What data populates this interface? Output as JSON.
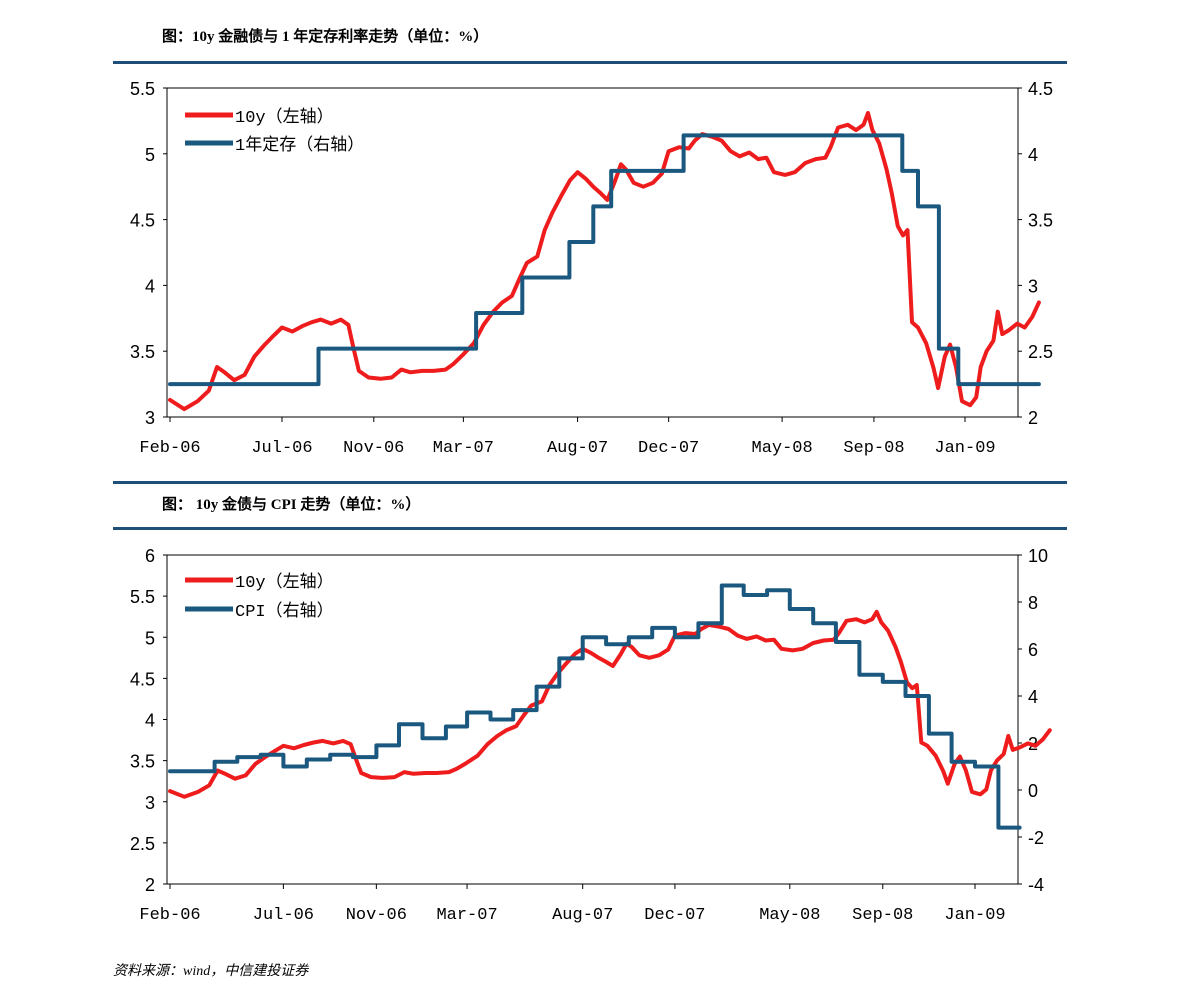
{
  "header": {
    "chart1_title": "图：10y 金融债与 1 年定存利率走势（单位：%）",
    "chart2_title": "图： 10y 金债与 CPI 走势（单位：%）"
  },
  "footer": {
    "source": "资料来源：wind，中信建投证券"
  },
  "chart_data": [
    {
      "type": "line",
      "title": "图：10y 金融债与 1 年定存利率走势（单位：%）",
      "x_ticks": [
        "Feb-06",
        "Jul-06",
        "Nov-06",
        "Mar-07",
        "Aug-07",
        "Dec-07",
        "May-08",
        "Sep-08",
        "Jan-09"
      ],
      "ylim_left": [
        3,
        5.5
      ],
      "yticks_left": [
        "3",
        "3.5",
        "4",
        "4.5",
        "5",
        "5.5"
      ],
      "ylim_right": [
        2,
        4.5
      ],
      "yticks_right": [
        "2",
        "2.5",
        "3",
        "3.5",
        "4",
        "4.5"
      ],
      "legend_position": "top-left",
      "series": [
        {
          "name": "10y（左轴）",
          "axis": "left",
          "color": "#ee1c1c",
          "style": "line",
          "points": [
            [
              "2006-02-01",
              3.13
            ],
            [
              "2006-02-20",
              3.06
            ],
            [
              "2006-03-10",
              3.12
            ],
            [
              "2006-03-25",
              3.2
            ],
            [
              "2006-04-05",
              3.38
            ],
            [
              "2006-04-15",
              3.34
            ],
            [
              "2006-04-28",
              3.28
            ],
            [
              "2006-05-12",
              3.32
            ],
            [
              "2006-05-25",
              3.46
            ],
            [
              "2006-06-08",
              3.55
            ],
            [
              "2006-06-20",
              3.62
            ],
            [
              "2006-07-01",
              3.68
            ],
            [
              "2006-07-15",
              3.65
            ],
            [
              "2006-07-28",
              3.69
            ],
            [
              "2006-08-10",
              3.72
            ],
            [
              "2006-08-22",
              3.74
            ],
            [
              "2006-09-05",
              3.71
            ],
            [
              "2006-09-18",
              3.74
            ],
            [
              "2006-09-28",
              3.7
            ],
            [
              "2006-10-05",
              3.52
            ],
            [
              "2006-10-12",
              3.35
            ],
            [
              "2006-10-25",
              3.3
            ],
            [
              "2006-11-10",
              3.29
            ],
            [
              "2006-11-25",
              3.3
            ],
            [
              "2006-12-08",
              3.36
            ],
            [
              "2006-12-20",
              3.34
            ],
            [
              "2007-01-05",
              3.35
            ],
            [
              "2007-01-20",
              3.35
            ],
            [
              "2007-02-05",
              3.36
            ],
            [
              "2007-02-15",
              3.4
            ],
            [
              "2007-02-28",
              3.47
            ],
            [
              "2007-03-15",
              3.56
            ],
            [
              "2007-03-28",
              3.7
            ],
            [
              "2007-04-10",
              3.8
            ],
            [
              "2007-04-22",
              3.87
            ],
            [
              "2007-05-05",
              3.92
            ],
            [
              "2007-05-15",
              4.05
            ],
            [
              "2007-05-25",
              4.17
            ],
            [
              "2007-06-08",
              4.22
            ],
            [
              "2007-06-18",
              4.42
            ],
            [
              "2007-06-28",
              4.55
            ],
            [
              "2007-07-10",
              4.68
            ],
            [
              "2007-07-22",
              4.8
            ],
            [
              "2007-08-01",
              4.86
            ],
            [
              "2007-08-12",
              4.81
            ],
            [
              "2007-08-22",
              4.75
            ],
            [
              "2007-09-01",
              4.7
            ],
            [
              "2007-09-10",
              4.65
            ],
            [
              "2007-09-20",
              4.79
            ],
            [
              "2007-09-28",
              4.92
            ],
            [
              "2007-10-05",
              4.88
            ],
            [
              "2007-10-15",
              4.78
            ],
            [
              "2007-10-28",
              4.75
            ],
            [
              "2007-11-10",
              4.78
            ],
            [
              "2007-11-22",
              4.85
            ],
            [
              "2007-12-01",
              5.02
            ],
            [
              "2007-12-15",
              5.05
            ],
            [
              "2007-12-28",
              5.04
            ],
            [
              "2008-01-05",
              5.1
            ],
            [
              "2008-01-15",
              5.15
            ],
            [
              "2008-01-28",
              5.13
            ],
            [
              "2008-02-10",
              5.1
            ],
            [
              "2008-02-22",
              5.02
            ],
            [
              "2008-03-05",
              4.98
            ],
            [
              "2008-03-18",
              5.01
            ],
            [
              "2008-03-30",
              4.96
            ],
            [
              "2008-04-10",
              4.97
            ],
            [
              "2008-04-20",
              4.86
            ],
            [
              "2008-05-05",
              4.84
            ],
            [
              "2008-05-18",
              4.86
            ],
            [
              "2008-06-01",
              4.93
            ],
            [
              "2008-06-15",
              4.96
            ],
            [
              "2008-06-28",
              4.97
            ],
            [
              "2008-07-05",
              5.05
            ],
            [
              "2008-07-15",
              5.2
            ],
            [
              "2008-07-28",
              5.22
            ],
            [
              "2008-08-08",
              5.18
            ],
            [
              "2008-08-18",
              5.22
            ],
            [
              "2008-08-24",
              5.31
            ],
            [
              "2008-08-30",
              5.18
            ],
            [
              "2008-09-08",
              5.08
            ],
            [
              "2008-09-18",
              4.88
            ],
            [
              "2008-09-25",
              4.7
            ],
            [
              "2008-10-03",
              4.45
            ],
            [
              "2008-10-10",
              4.38
            ],
            [
              "2008-10-16",
              4.42
            ],
            [
              "2008-10-22",
              3.72
            ],
            [
              "2008-10-30",
              3.68
            ],
            [
              "2008-11-10",
              3.56
            ],
            [
              "2008-11-20",
              3.37
            ],
            [
              "2008-11-26",
              3.22
            ],
            [
              "2008-12-05",
              3.46
            ],
            [
              "2008-12-12",
              3.55
            ],
            [
              "2008-12-20",
              3.38
            ],
            [
              "2008-12-28",
              3.12
            ],
            [
              "2009-01-08",
              3.09
            ],
            [
              "2009-01-16",
              3.15
            ],
            [
              "2009-01-22",
              3.38
            ],
            [
              "2009-01-30",
              3.5
            ],
            [
              "2009-02-08",
              3.58
            ],
            [
              "2009-02-14",
              3.8
            ],
            [
              "2009-02-20",
              3.63
            ],
            [
              "2009-03-01",
              3.66
            ],
            [
              "2009-03-12",
              3.71
            ],
            [
              "2009-03-22",
              3.68
            ],
            [
              "2009-04-01",
              3.76
            ],
            [
              "2009-04-10",
              3.87
            ]
          ]
        },
        {
          "name": "1年定存（右轴）",
          "axis": "right",
          "color": "#1a5880",
          "style": "step",
          "points": [
            [
              "2006-02-01",
              2.25
            ],
            [
              "2006-08-19",
              2.52
            ],
            [
              "2007-03-18",
              2.79
            ],
            [
              "2007-05-19",
              2.79
            ],
            [
              "2007-05-19",
              3.06
            ],
            [
              "2007-07-21",
              3.33
            ],
            [
              "2007-08-22",
              3.6
            ],
            [
              "2007-09-15",
              3.87
            ],
            [
              "2007-12-21",
              4.14
            ],
            [
              "2008-10-09",
              3.87
            ],
            [
              "2008-10-30",
              3.6
            ],
            [
              "2008-11-27",
              2.52
            ],
            [
              "2008-12-23",
              2.25
            ],
            [
              "2009-04-10",
              2.25
            ]
          ]
        }
      ]
    },
    {
      "type": "line",
      "title": "图： 10y 金债与 CPI 走势（单位：%）",
      "x_ticks": [
        "Feb-06",
        "Jul-06",
        "Nov-06",
        "Mar-07",
        "Aug-07",
        "Dec-07",
        "May-08",
        "Sep-08",
        "Jan-09"
      ],
      "ylim_left": [
        2,
        6
      ],
      "yticks_left": [
        "2",
        "2.5",
        "3",
        "3.5",
        "4",
        "4.5",
        "5",
        "5.5",
        "6"
      ],
      "ylim_right": [
        -4,
        10
      ],
      "yticks_right": [
        "-4",
        "-2",
        "0",
        "2",
        "4",
        "6",
        "8",
        "10"
      ],
      "legend_position": "top-left",
      "series": [
        {
          "name": "10y（左轴）",
          "axis": "left",
          "color": "#ee1c1c",
          "style": "line",
          "points": "same-as-chart-1"
        },
        {
          "name": "CPI（右轴）",
          "axis": "right",
          "color": "#1a5880",
          "style": "step",
          "points": [
            [
              "2006-02-01",
              0.8
            ],
            [
              "2006-03-01",
              0.8
            ],
            [
              "2006-04-01",
              1.2
            ],
            [
              "2006-05-01",
              1.4
            ],
            [
              "2006-06-01",
              1.5
            ],
            [
              "2006-07-01",
              1.0
            ],
            [
              "2006-08-01",
              1.3
            ],
            [
              "2006-09-01",
              1.5
            ],
            [
              "2006-10-01",
              1.4
            ],
            [
              "2006-11-01",
              1.9
            ],
            [
              "2006-12-01",
              2.8
            ],
            [
              "2007-01-01",
              2.2
            ],
            [
              "2007-02-01",
              2.7
            ],
            [
              "2007-03-01",
              3.3
            ],
            [
              "2007-04-01",
              3.0
            ],
            [
              "2007-05-01",
              3.4
            ],
            [
              "2007-06-01",
              4.4
            ],
            [
              "2007-07-01",
              5.6
            ],
            [
              "2007-08-01",
              6.5
            ],
            [
              "2007-09-01",
              6.2
            ],
            [
              "2007-10-01",
              6.5
            ],
            [
              "2007-11-01",
              6.9
            ],
            [
              "2007-12-01",
              6.5
            ],
            [
              "2008-01-01",
              7.1
            ],
            [
              "2008-02-01",
              8.7
            ],
            [
              "2008-03-01",
              8.3
            ],
            [
              "2008-04-01",
              8.5
            ],
            [
              "2008-05-01",
              7.7
            ],
            [
              "2008-06-01",
              7.1
            ],
            [
              "2008-07-01",
              6.3
            ],
            [
              "2008-08-01",
              4.9
            ],
            [
              "2008-09-01",
              4.6
            ],
            [
              "2008-10-01",
              4.0
            ],
            [
              "2008-11-01",
              2.4
            ],
            [
              "2008-12-01",
              1.2
            ],
            [
              "2009-01-01",
              1.0
            ],
            [
              "2009-02-01",
              -1.6
            ],
            [
              "2009-03-01",
              -1.6
            ]
          ]
        }
      ]
    }
  ]
}
